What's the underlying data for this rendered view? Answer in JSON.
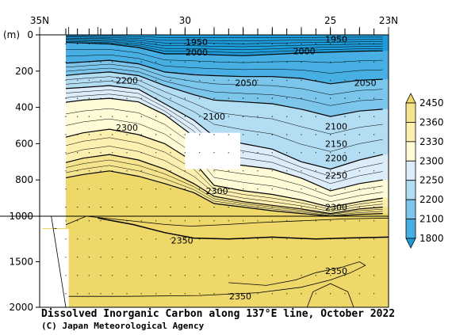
{
  "chart_data": {
    "type": "contour",
    "title": "Dissolved Inorganic Carbon along 137°E line, October 2022",
    "credit": "(C) Japan Meteorological Agency",
    "ylabel": "(m)",
    "x_ticks": [
      "35N",
      "30",
      "25",
      "23N"
    ],
    "x_tick_values": [
      35,
      30,
      25,
      23
    ],
    "xlim": [
      35,
      23
    ],
    "y_ticks_upper": [
      0,
      200,
      400,
      600,
      800,
      1000
    ],
    "y_ticks_lower": [
      1500,
      2000
    ],
    "ylim_upper": [
      0,
      1000
    ],
    "ylim_lower": [
      1000,
      2000
    ],
    "colorbar": {
      "labels": [
        "2450",
        "2360",
        "2330",
        "2300",
        "2250",
        "2200",
        "2100",
        "1800"
      ],
      "colors": [
        "#1e9bd8",
        "#47afe3",
        "#7cc6ec",
        "#b3ddf3",
        "#dcecf8",
        "#fffbd6",
        "#fbf0b0",
        "#f5e48e",
        "#efd86a"
      ]
    },
    "contour_labels": [
      {
        "text": "1950",
        "lat": 29.6,
        "depth": 40
      },
      {
        "text": "2000",
        "lat": 29.6,
        "depth": 95
      },
      {
        "text": "1950",
        "lat": 24.8,
        "depth": 25
      },
      {
        "text": "2000",
        "lat": 25.9,
        "depth": 90
      },
      {
        "text": "2200",
        "lat": 32.0,
        "depth": 250
      },
      {
        "text": "2050",
        "lat": 27.9,
        "depth": 265
      },
      {
        "text": "2050",
        "lat": 23.8,
        "depth": 265
      },
      {
        "text": "2100",
        "lat": 29.0,
        "depth": 450
      },
      {
        "text": "2100",
        "lat": 24.8,
        "depth": 505
      },
      {
        "text": "2300",
        "lat": 32.0,
        "depth": 510
      },
      {
        "text": "2150",
        "lat": 24.8,
        "depth": 600
      },
      {
        "text": "2200",
        "lat": 24.8,
        "depth": 680
      },
      {
        "text": "2250",
        "lat": 24.8,
        "depth": 775
      },
      {
        "text": "2300",
        "lat": 28.9,
        "depth": 860
      },
      {
        "text": "2300",
        "lat": 24.8,
        "depth": 950
      },
      {
        "text": "2350",
        "lat": 30.1,
        "depth": 1265
      },
      {
        "text": "2350",
        "lat": 24.8,
        "depth": 1600
      },
      {
        "text": "2350",
        "lat": 28.1,
        "depth": 1880
      }
    ]
  }
}
